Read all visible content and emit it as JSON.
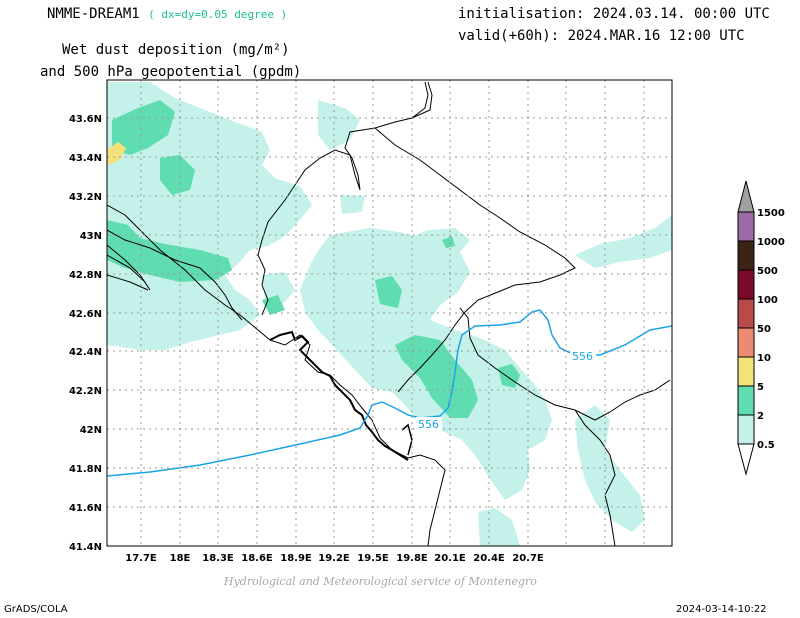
{
  "header": {
    "model_name": "NMME-DREAM1",
    "resolution": "( dx=dy=0.05 degree )",
    "initialisation": "initialisation: 2024.03.14. 00:00 UTC",
    "valid": "valid(+60h): 2024.MAR.16 12:00 UTC",
    "title_line1": "Wet dust deposition (mg/m²)",
    "title_line2": "and 500 hPa geopotential (gpdm)"
  },
  "map": {
    "lat_labels": [
      "43.6N",
      "43.4N",
      "43.2N",
      "43N",
      "42.8N",
      "42.6N",
      "42.4N",
      "42.2N",
      "42N",
      "41.8N",
      "41.6N",
      "41.4N"
    ],
    "lon_labels": [
      "17.7E",
      "18E",
      "18.3E",
      "18.6E",
      "18.9E",
      "19.2E",
      "19.5E",
      "19.8E",
      "20.1E",
      "20.4E",
      "20.7E"
    ],
    "contour_labels": [
      "556",
      "556"
    ],
    "contour_color": "#1aa3e8",
    "grid": true
  },
  "legend": {
    "levels": [
      "1500",
      "1000",
      "500",
      "100",
      "50",
      "10",
      "5",
      "2",
      "0.5"
    ],
    "colors": [
      "#a0a0a0",
      "#9b6ba8",
      "#3b2416",
      "#7a0a2a",
      "#b84a4a",
      "#ec8a72",
      "#f3e27a",
      "#5fdcb0",
      "#c4f2ea"
    ]
  },
  "footer": {
    "credit": "Hydrological and Meteorological service of Montenegro",
    "software": "GrADS/COLA",
    "timestamp": "2024-03-14-10:22"
  }
}
